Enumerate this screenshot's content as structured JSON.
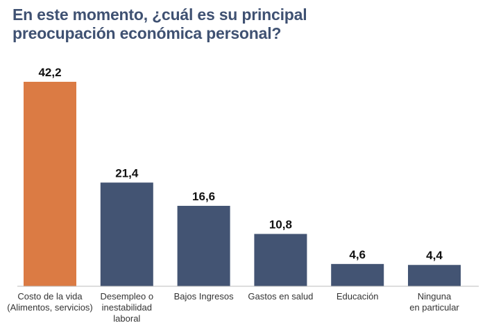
{
  "title_lines": [
    "En este momento, ¿cuál es su principal",
    "preocupación económica personal?"
  ],
  "chart_data": {
    "type": "bar",
    "title": "En este momento, ¿cuál es su principal preocupación económica personal?",
    "categories": [
      [
        "Costo de la vida",
        "(Alimentos, servicios)"
      ],
      [
        "Desempleo o",
        "inestabilidad",
        "laboral"
      ],
      [
        "Bajos Ingresos"
      ],
      [
        "Gastos en salud"
      ],
      [
        "Educación"
      ],
      [
        "Ninguna",
        "en particular"
      ]
    ],
    "values": [
      42.2,
      21.4,
      16.6,
      10.8,
      4.6,
      4.4
    ],
    "value_labels": [
      "42,2",
      "21,4",
      "16,6",
      "10,8",
      "4,6",
      "4,4"
    ],
    "colors": [
      "#db7b44",
      "#435473",
      "#435473",
      "#435473",
      "#435473",
      "#435473"
    ],
    "xlabel": "",
    "ylabel": "",
    "ylim": [
      0,
      42.2
    ],
    "grid": false,
    "legend": "none"
  }
}
